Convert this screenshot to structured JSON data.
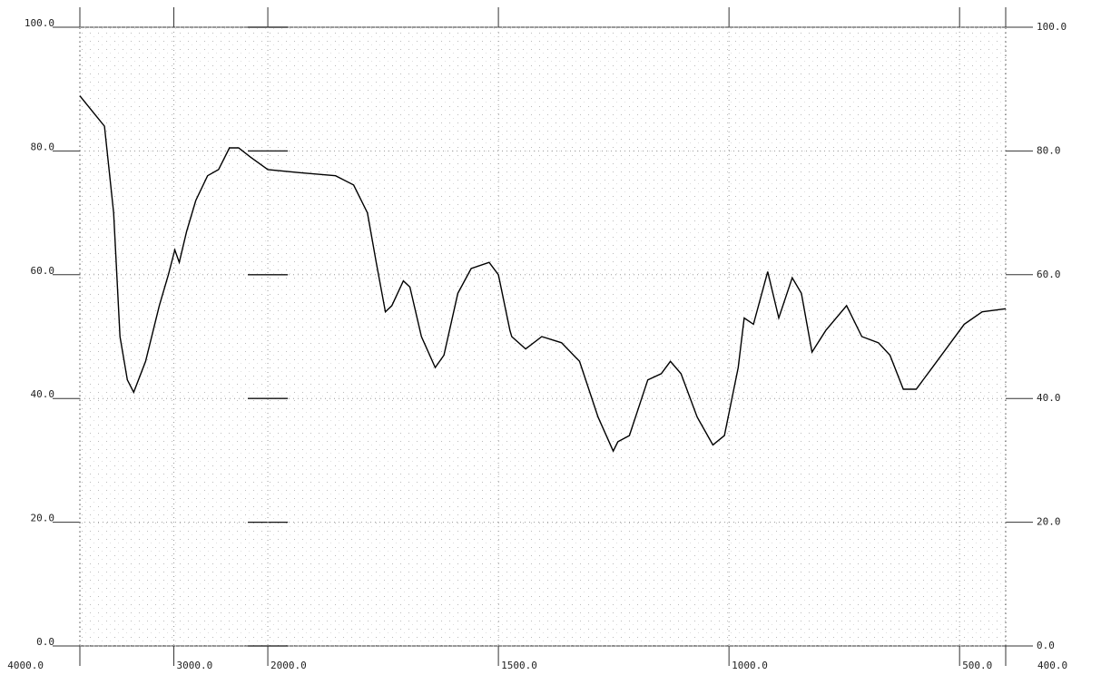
{
  "chart_data": {
    "type": "line",
    "color": "#000000",
    "xlim": [
      4000,
      400
    ],
    "x_scale_break": 2000,
    "ylim": [
      0,
      100
    ],
    "y2lim": [
      0,
      100
    ],
    "grid": true,
    "xticks": [
      {
        "value": 4000,
        "label": "4000.0"
      },
      {
        "value": 3000,
        "label": "3000.0"
      },
      {
        "value": 2000,
        "label": "2000.0"
      },
      {
        "value": 1500,
        "label": "1500.0"
      },
      {
        "value": 1000,
        "label": "1000.0"
      },
      {
        "value": 500,
        "label": "500.0"
      },
      {
        "value": 400,
        "label": "400.0"
      }
    ],
    "yticks": [
      {
        "value": 0,
        "label": "0.0"
      },
      {
        "value": 20,
        "label": "20.0"
      },
      {
        "value": 40,
        "label": "40.0"
      },
      {
        "value": 60,
        "label": "60.0"
      },
      {
        "value": 80,
        "label": "80.0"
      },
      {
        "value": 100,
        "label": "100.0"
      }
    ],
    "y2ticks": [
      {
        "value": 0,
        "label": "0.0"
      },
      {
        "value": 20,
        "label": "20.0"
      },
      {
        "value": 40,
        "label": "40.0"
      },
      {
        "value": 60,
        "label": "60.0"
      },
      {
        "value": 80,
        "label": "80.0"
      },
      {
        "value": 100,
        "label": "100.0"
      }
    ],
    "x": [
      4000,
      3738,
      3641,
      3573,
      3495,
      3427,
      3301,
      3155,
      3058,
      2990,
      2942,
      2864,
      2767,
      2641,
      2524,
      2408,
      2311,
      2184,
      2000,
      1931,
      1853,
      1814,
      1784,
      1765,
      1745,
      1731,
      1706,
      1692,
      1667,
      1637,
      1618,
      1588,
      1559,
      1520,
      1500,
      1475,
      1471,
      1441,
      1406,
      1363,
      1324,
      1284,
      1251,
      1241,
      1216,
      1176,
      1147,
      1127,
      1104,
      1069,
      1035,
      1010,
      980,
      967,
      947,
      916,
      892,
      863,
      843,
      820,
      790,
      745,
      712,
      676,
      651,
      622,
      594,
      559,
      490,
      451,
      400
    ],
    "values": [
      88.9,
      84,
      70,
      50,
      43,
      41,
      46,
      55,
      60,
      64,
      62,
      67,
      72,
      76,
      77,
      80.5,
      80.5,
      79,
      77,
      76.5,
      76,
      74.5,
      70,
      62,
      54,
      55,
      59,
      58,
      50,
      45,
      47,
      57,
      61,
      62,
      60,
      51,
      50,
      48,
      50,
      49,
      46,
      37,
      31.5,
      33,
      34,
      43,
      44,
      46,
      44,
      37,
      32.5,
      34,
      45,
      53,
      52,
      60.5,
      53,
      59.5,
      57,
      47.5,
      51,
      55,
      50,
      49,
      47,
      41.5,
      41.5,
      45,
      52,
      54,
      54.5
    ]
  }
}
